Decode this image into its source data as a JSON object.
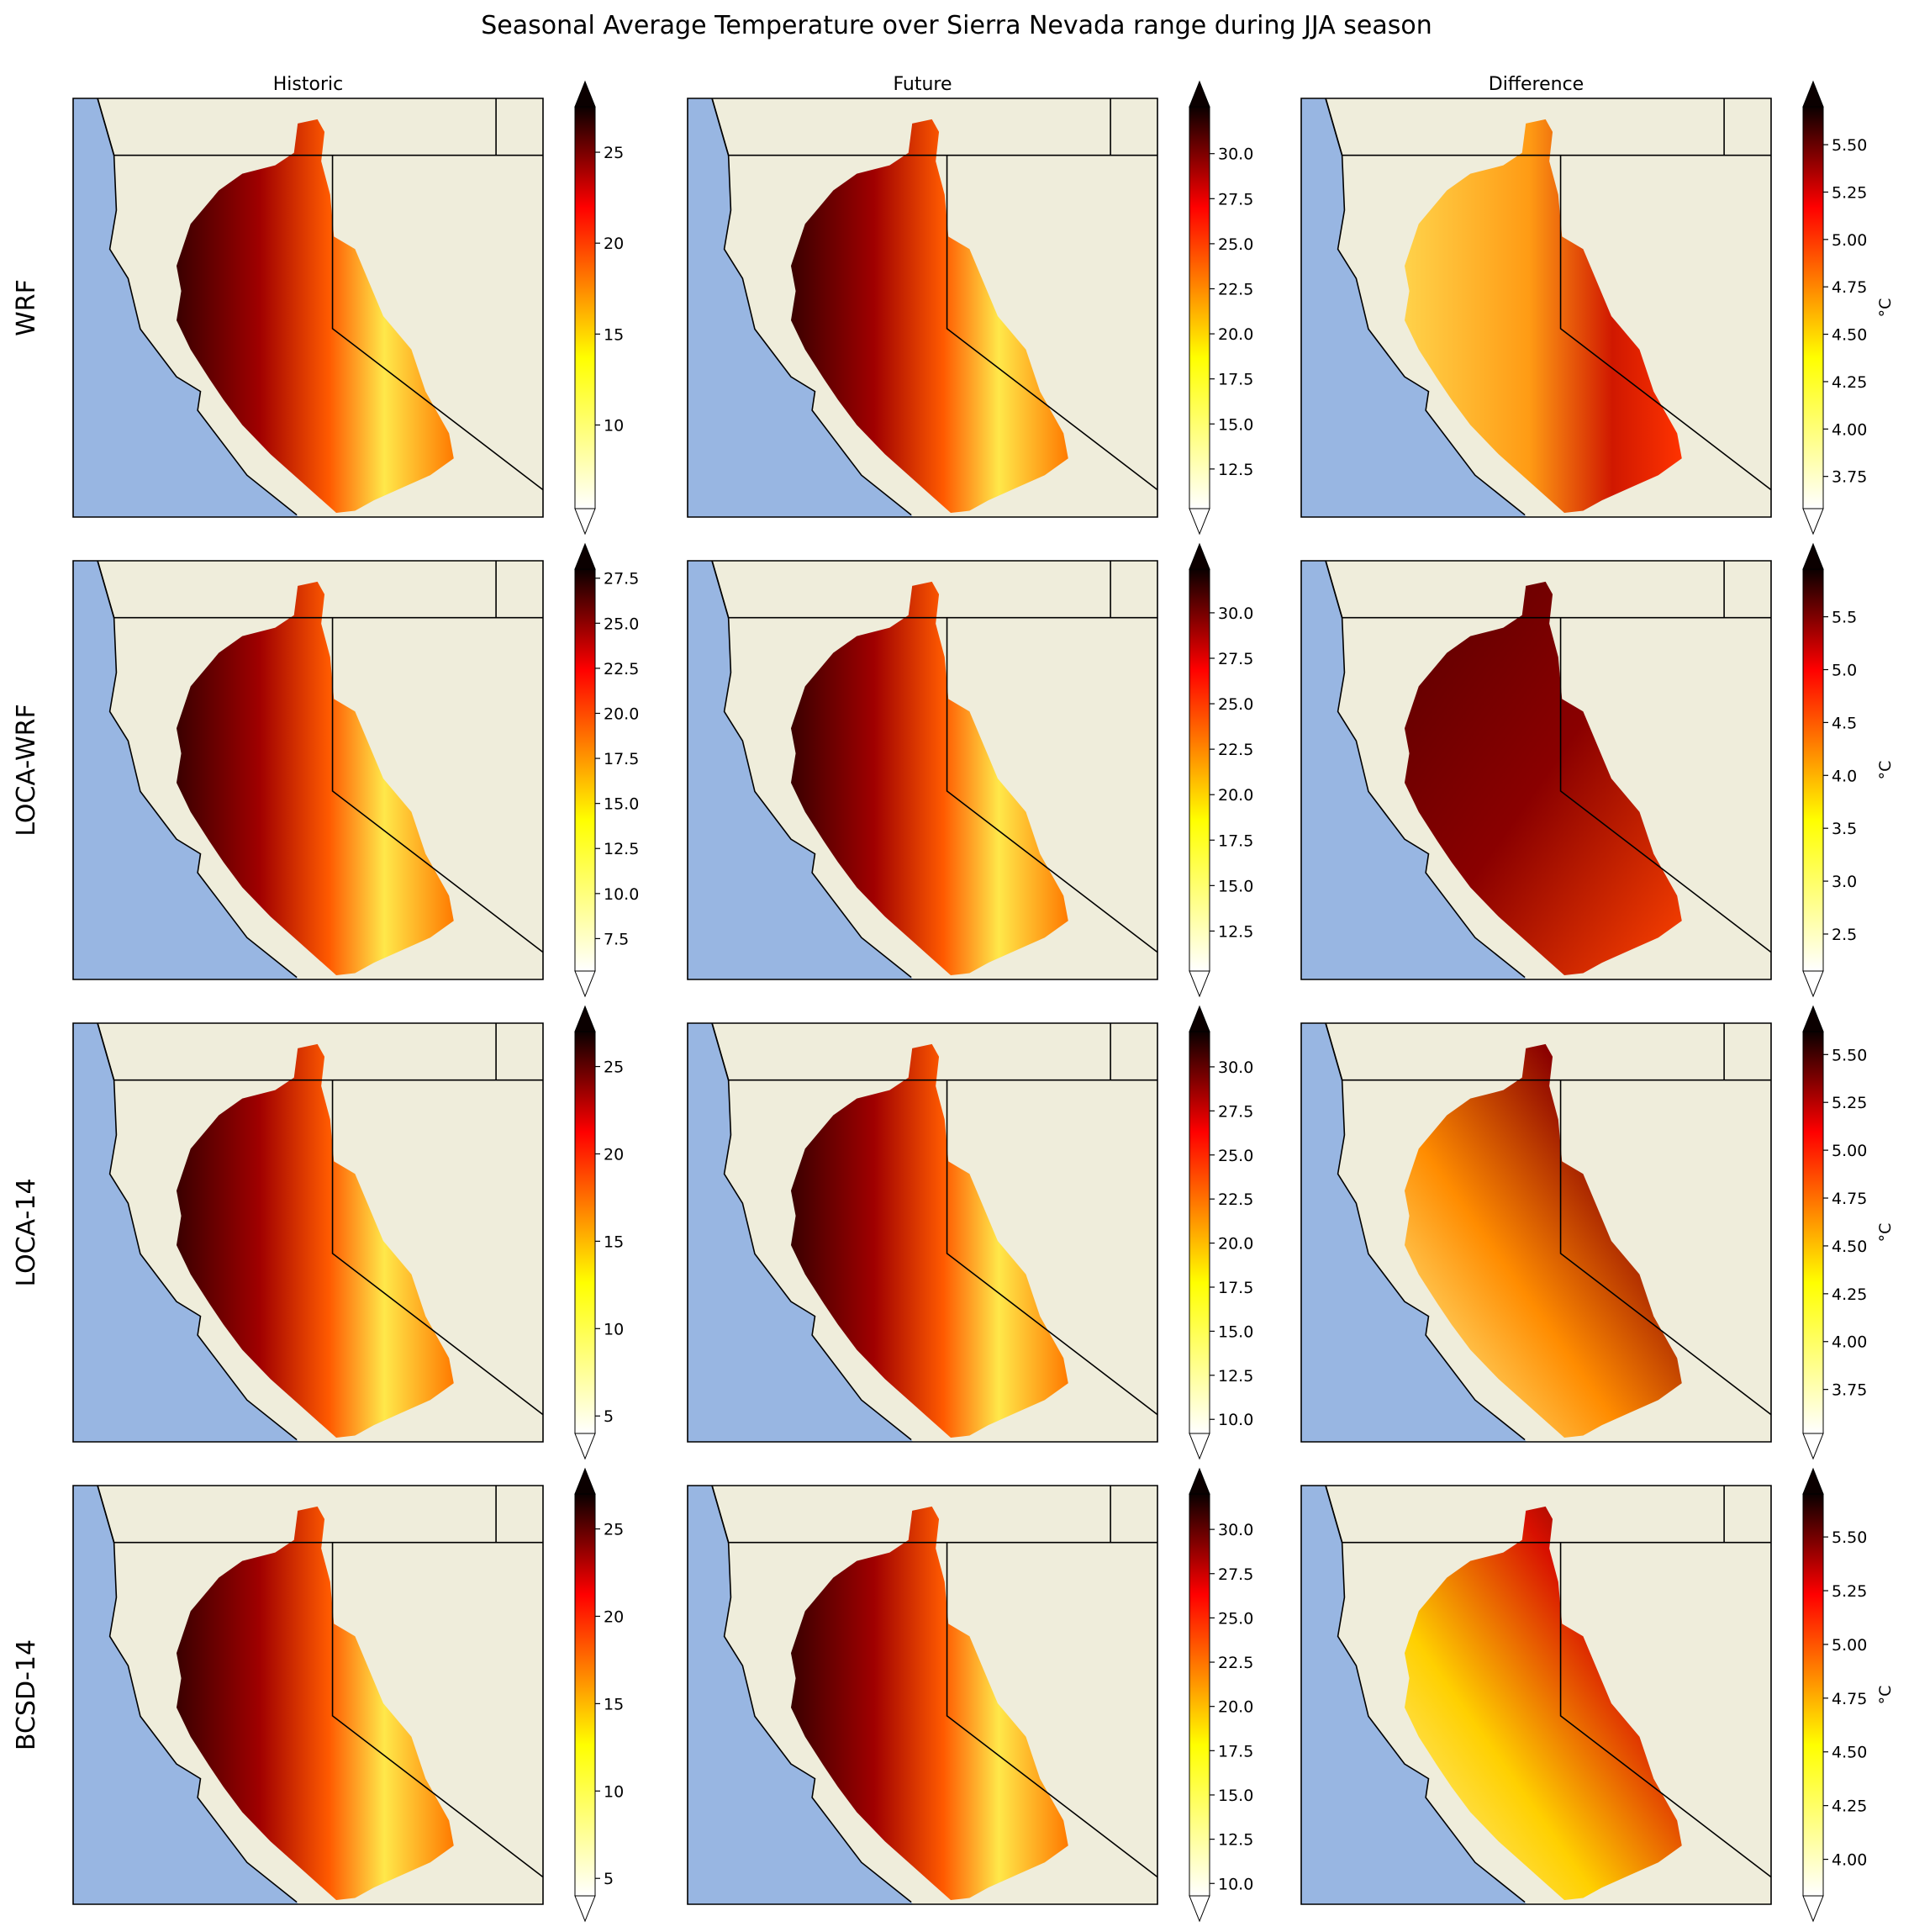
{
  "chart_data": {
    "type": "heatmap",
    "title": "Seasonal Average Temperature over Sierra Nevada range during JJA season",
    "columns": [
      "Historic",
      "Future",
      "Difference"
    ],
    "rows": [
      "WRF",
      "LOCA-WRF",
      "LOCA-14",
      "BCSD-14"
    ],
    "colormap": "hot_r",
    "land_color": "#efeddb",
    "ocean_color": "#98b6e2",
    "unit_label": "°C",
    "panels": [
      {
        "row": "WRF",
        "column": "Historic",
        "vmin": 5.4,
        "vmax": 27.5,
        "ticks": [
          10,
          15,
          20,
          25
        ],
        "tick_labels": [
          "10",
          "15",
          "20",
          "25"
        ],
        "unit_shown": false
      },
      {
        "row": "WRF",
        "column": "Future",
        "vmin": 10.3,
        "vmax": 32.6,
        "ticks": [
          12.5,
          15.0,
          17.5,
          20.0,
          22.5,
          25.0,
          27.5,
          30.0
        ],
        "tick_labels": [
          "12.5",
          "15.0",
          "17.5",
          "20.0",
          "22.5",
          "25.0",
          "27.5",
          "30.0"
        ],
        "unit_shown": false
      },
      {
        "row": "WRF",
        "column": "Difference",
        "vmin": 3.58,
        "vmax": 5.7,
        "ticks": [
          3.75,
          4.0,
          4.25,
          4.5,
          4.75,
          5.0,
          5.25,
          5.5
        ],
        "tick_labels": [
          "3.75",
          "4.00",
          "4.25",
          "4.50",
          "4.75",
          "5.00",
          "5.25",
          "5.50"
        ],
        "unit_shown": true
      },
      {
        "row": "LOCA-WRF",
        "column": "Historic",
        "vmin": 5.7,
        "vmax": 28.0,
        "ticks": [
          7.5,
          10.0,
          12.5,
          15.0,
          17.5,
          20.0,
          22.5,
          25.0,
          27.5
        ],
        "tick_labels": [
          "7.5",
          "10.0",
          "12.5",
          "15.0",
          "17.5",
          "20.0",
          "22.5",
          "25.0",
          "27.5"
        ],
        "unit_shown": false
      },
      {
        "row": "LOCA-WRF",
        "column": "Future",
        "vmin": 10.3,
        "vmax": 32.4,
        "ticks": [
          12.5,
          15.0,
          17.5,
          20.0,
          22.5,
          25.0,
          27.5,
          30.0
        ],
        "tick_labels": [
          "12.5",
          "15.0",
          "17.5",
          "20.0",
          "22.5",
          "25.0",
          "27.5",
          "30.0"
        ],
        "unit_shown": false
      },
      {
        "row": "LOCA-WRF",
        "column": "Difference",
        "vmin": 2.15,
        "vmax": 5.95,
        "ticks": [
          2.5,
          3.0,
          3.5,
          4.0,
          4.5,
          5.0,
          5.5
        ],
        "tick_labels": [
          "2.5",
          "3.0",
          "3.5",
          "4.0",
          "4.5",
          "5.0",
          "5.5"
        ],
        "unit_shown": true
      },
      {
        "row": "LOCA-14",
        "column": "Historic",
        "vmin": 4.0,
        "vmax": 27.0,
        "ticks": [
          5,
          10,
          15,
          20,
          25
        ],
        "tick_labels": [
          "5",
          "10",
          "15",
          "20",
          "25"
        ],
        "unit_shown": false
      },
      {
        "row": "LOCA-14",
        "column": "Future",
        "vmin": 9.2,
        "vmax": 32.0,
        "ticks": [
          10.0,
          12.5,
          15.0,
          17.5,
          20.0,
          22.5,
          25.0,
          27.5,
          30.0
        ],
        "tick_labels": [
          "10.0",
          "12.5",
          "15.0",
          "17.5",
          "20.0",
          "22.5",
          "25.0",
          "27.5",
          "30.0"
        ],
        "unit_shown": false
      },
      {
        "row": "LOCA-14",
        "column": "Difference",
        "vmin": 3.52,
        "vmax": 5.62,
        "ticks": [
          3.75,
          4.0,
          4.25,
          4.5,
          4.75,
          5.0,
          5.25,
          5.5
        ],
        "tick_labels": [
          "3.75",
          "4.00",
          "4.25",
          "4.50",
          "4.75",
          "5.00",
          "5.25",
          "5.50"
        ],
        "unit_shown": true
      },
      {
        "row": "BCSD-14",
        "column": "Historic",
        "vmin": 4.0,
        "vmax": 27.0,
        "ticks": [
          5,
          10,
          15,
          20,
          25
        ],
        "tick_labels": [
          "5",
          "10",
          "15",
          "20",
          "25"
        ],
        "unit_shown": false
      },
      {
        "row": "BCSD-14",
        "column": "Future",
        "vmin": 9.3,
        "vmax": 32.0,
        "ticks": [
          10.0,
          12.5,
          15.0,
          17.5,
          20.0,
          22.5,
          25.0,
          27.5,
          30.0
        ],
        "tick_labels": [
          "10.0",
          "12.5",
          "15.0",
          "17.5",
          "20.0",
          "22.5",
          "25.0",
          "27.5",
          "30.0"
        ],
        "unit_shown": false
      },
      {
        "row": "BCSD-14",
        "column": "Difference",
        "vmin": 3.83,
        "vmax": 5.7,
        "ticks": [
          4.0,
          4.25,
          4.5,
          4.75,
          5.0,
          5.25,
          5.5
        ],
        "tick_labels": [
          "4.00",
          "4.25",
          "4.50",
          "4.75",
          "5.00",
          "5.25",
          "5.50"
        ],
        "unit_shown": true
      }
    ]
  }
}
